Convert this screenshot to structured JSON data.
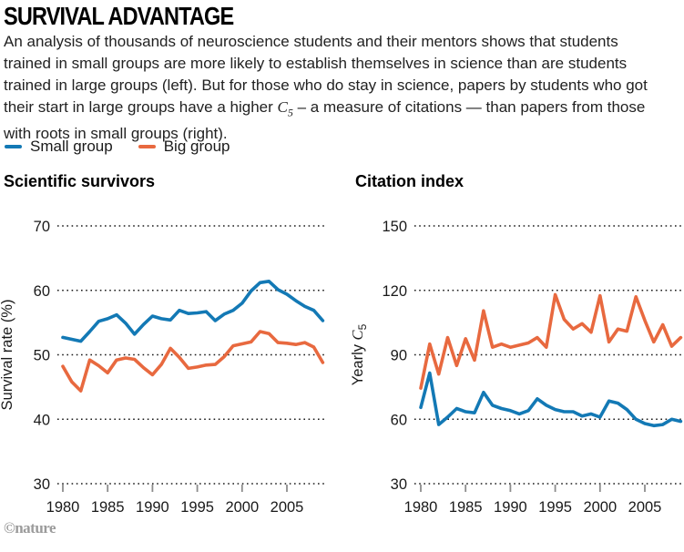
{
  "header": {
    "title": "SURVIVAL ADVANTAGE",
    "description_part1": "An analysis of thousands of neuroscience students and their mentors shows that students trained in small groups are more likely to establish themselves in science than are students trained in large groups (left). But for those who do stay in science, papers by students who got their start in large groups have a higher ",
    "c5_letter": "C",
    "c5_subscript": "5",
    "description_part2": " – a measure of citations — than papers from those with roots in small groups (right)."
  },
  "legend": {
    "items": [
      {
        "label": "Small group",
        "color": "#1379b5"
      },
      {
        "label": "Big group",
        "color": "#e8693f"
      }
    ]
  },
  "footer": {
    "credit": "©nature"
  },
  "chart_data": [
    {
      "type": "line",
      "title": "Scientific survivors",
      "xlabel": "",
      "ylabel": "Survival rate (%)",
      "ylabel_parts": {
        "pre": "Survival rate (%)",
        "sym": "",
        "sub": ""
      },
      "ylim": [
        30,
        70
      ],
      "yticks": [
        70,
        60,
        50,
        40,
        30
      ],
      "xticks": [
        1980,
        1985,
        1990,
        1995,
        2000,
        2005
      ],
      "grid": "horizontal-dotted",
      "legend_position": "top-left-shared",
      "x": [
        1980,
        1981,
        1982,
        1983,
        1984,
        1985,
        1986,
        1987,
        1988,
        1989,
        1990,
        1991,
        1992,
        1993,
        1994,
        1995,
        1996,
        1997,
        1998,
        1999,
        2000,
        2001,
        2002,
        2003,
        2004,
        2005,
        2006,
        2007,
        2008,
        2009
      ],
      "series": [
        {
          "name": "Small group",
          "color": "#1379b5",
          "values": [
            52.7,
            52.4,
            52.1,
            53.6,
            55.2,
            55.6,
            56.2,
            54.9,
            53.2,
            54.7,
            56.0,
            55.6,
            55.4,
            56.9,
            56.4,
            56.5,
            56.7,
            55.3,
            56.3,
            56.9,
            58.0,
            59.9,
            61.2,
            61.4,
            60.1,
            59.4,
            58.4,
            57.5,
            56.9,
            55.3
          ]
        },
        {
          "name": "Big group",
          "color": "#e8693f",
          "values": [
            48.2,
            45.8,
            44.4,
            49.2,
            48.3,
            47.2,
            49.2,
            49.5,
            49.3,
            48.0,
            46.9,
            48.5,
            51.0,
            49.6,
            47.9,
            48.1,
            48.4,
            48.5,
            49.7,
            51.4,
            51.7,
            52.0,
            53.6,
            53.3,
            51.9,
            51.8,
            51.6,
            51.9,
            51.2,
            48.8
          ]
        }
      ]
    },
    {
      "type": "line",
      "title": "Citation index",
      "xlabel": "",
      "ylabel": "Yearly C5",
      "ylabel_parts": {
        "pre": "Yearly ",
        "sym": "C",
        "sub": "5"
      },
      "ylim": [
        30,
        150
      ],
      "yticks": [
        150,
        120,
        90,
        60,
        30
      ],
      "xticks": [
        1980,
        1985,
        1990,
        1995,
        2000,
        2005
      ],
      "grid": "horizontal-dotted",
      "legend_position": "top-left-shared",
      "x": [
        1980,
        1981,
        1982,
        1983,
        1984,
        1985,
        1986,
        1987,
        1988,
        1989,
        1990,
        1991,
        1992,
        1993,
        1994,
        1995,
        1996,
        1997,
        1998,
        1999,
        2000,
        2001,
        2002,
        2003,
        2004,
        2005,
        2006,
        2007,
        2008,
        2009
      ],
      "series": [
        {
          "name": "Small group",
          "color": "#1379b5",
          "values": [
            65.5,
            81.5,
            57.5,
            61.0,
            65.0,
            63.5,
            63.0,
            72.5,
            66.5,
            65.0,
            64.0,
            62.5,
            64.0,
            69.5,
            66.5,
            64.5,
            63.5,
            63.5,
            61.5,
            62.5,
            61.0,
            68.5,
            67.5,
            64.5,
            60.0,
            58.0,
            57.0,
            57.5,
            60.0,
            59.0
          ]
        },
        {
          "name": "Big group",
          "color": "#e8693f",
          "values": [
            74.5,
            95.0,
            81.0,
            98.0,
            85.0,
            97.5,
            87.5,
            110.5,
            93.5,
            95.0,
            93.5,
            94.5,
            95.5,
            98.0,
            93.5,
            118.0,
            106.5,
            102.0,
            104.5,
            100.5,
            117.5,
            96.0,
            102.0,
            101.0,
            117.0,
            106.0,
            96.0,
            104.0,
            94.0,
            98.0
          ]
        }
      ]
    }
  ]
}
